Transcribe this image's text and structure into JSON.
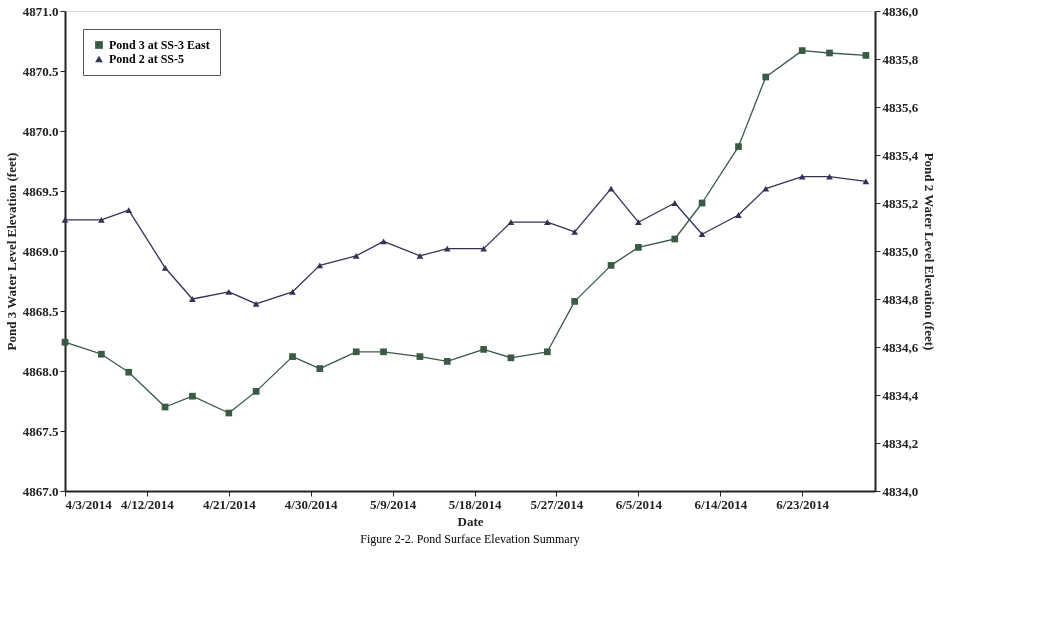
{
  "chart_data": {
    "type": "line",
    "xlabel": "Date",
    "ylabel": "Pond 3 Water Level Elevation (feet)",
    "y2label": "Pond 2 Water Level Elevation (feet)",
    "annotations": [
      "Figure 2-2. Pond Surface Elevation Summary"
    ],
    "x": [
      "2014-04-03",
      "2014-04-07",
      "2014-04-10",
      "2014-04-14",
      "2014-04-17",
      "2014-04-21",
      "2014-04-24",
      "2014-04-28",
      "2014-05-01",
      "2014-05-05",
      "2014-05-08",
      "2014-05-12",
      "2014-05-15",
      "2014-05-19",
      "2014-05-22",
      "2014-05-26",
      "2014-05-29",
      "2014-06-02",
      "2014-06-05",
      "2014-06-09",
      "2014-06-12",
      "2014-06-16",
      "2014-06-19",
      "2014-06-23",
      "2014-06-26",
      "2014-06-30"
    ],
    "series": [
      {
        "name": "Pond 3 at SS-3 East",
        "color": "#3a5a45",
        "marker": "square",
        "values": [
          4868.24,
          4868.14,
          4867.99,
          4867.7,
          4867.79,
          4867.65,
          4867.83,
          4868.12,
          4868.02,
          4868.16,
          4868.16,
          4868.12,
          4868.08,
          4868.18,
          4868.11,
          4868.16,
          4868.58,
          4868.88,
          4869.03,
          4869.1,
          4869.4,
          4869.87,
          4870.45,
          4870.67,
          4870.65,
          4870.63
        ]
      },
      {
        "name": "Pond 2 at SS-5",
        "color": "#333355",
        "marker": "triangle",
        "axis": "y2",
        "values": [
          4835.13,
          4835.13,
          4835.17,
          4834.93,
          4834.8,
          4834.83,
          4834.78,
          4834.83,
          4834.94,
          4834.98,
          4835.04,
          4834.98,
          4835.01,
          4835.01,
          4835.12,
          4835.12,
          4835.08,
          4835.26,
          4835.12,
          4835.2,
          4835.07,
          4835.15,
          4835.26,
          4835.31,
          4835.31,
          4835.29
        ]
      }
    ],
    "xlim": [
      "2014-04-03",
      "2014-07-01"
    ],
    "xticks": [
      {
        "value": "2014-04-03",
        "label": "4/3/2014"
      },
      {
        "value": "2014-04-12",
        "label": "4/12/2014"
      },
      {
        "value": "2014-04-21",
        "label": "4/21/2014"
      },
      {
        "value": "2014-04-30",
        "label": "4/30/2014"
      },
      {
        "value": "2014-05-09",
        "label": "5/9/2014"
      },
      {
        "value": "2014-05-18",
        "label": "5/18/2014"
      },
      {
        "value": "2014-05-27",
        "label": "5/27/2014"
      },
      {
        "value": "2014-06-05",
        "label": "6/5/2014"
      },
      {
        "value": "2014-06-14",
        "label": "6/14/2014"
      },
      {
        "value": "2014-06-23",
        "label": "6/23/2014"
      }
    ],
    "ylim": [
      4867,
      4871
    ],
    "yticks": [
      {
        "value": 4867,
        "label": "4867.0"
      },
      {
        "value": 4867.5,
        "label": "4867.5"
      },
      {
        "value": 4868,
        "label": "4868.0"
      },
      {
        "value": 4868.5,
        "label": "4868.5"
      },
      {
        "value": 4869,
        "label": "4869.0"
      },
      {
        "value": 4869.5,
        "label": "4869.5"
      },
      {
        "value": 4870,
        "label": "4870.0"
      },
      {
        "value": 4870.5,
        "label": "4870.5"
      },
      {
        "value": 4871,
        "label": "4871.0"
      }
    ],
    "y2lim": [
      4834,
      4836
    ],
    "y2ticks": [
      {
        "value": 4834,
        "label": "4834,0"
      },
      {
        "value": 4834.2,
        "label": "4834,2"
      },
      {
        "value": 4834.4,
        "label": "4834,4"
      },
      {
        "value": 4834.6,
        "label": "4834,6"
      },
      {
        "value": 4834.8,
        "label": "4834,8"
      },
      {
        "value": 4835,
        "label": "4835,0"
      },
      {
        "value": 4835.2,
        "label": "4835,2"
      },
      {
        "value": 4835.4,
        "label": "4835,4"
      },
      {
        "value": 4835.6,
        "label": "4835,6"
      },
      {
        "value": 4835.8,
        "label": "4835,8"
      },
      {
        "value": 4836,
        "label": "4836,0"
      }
    ],
    "grid": false,
    "legend": "top left",
    "line_style": "solid"
  }
}
